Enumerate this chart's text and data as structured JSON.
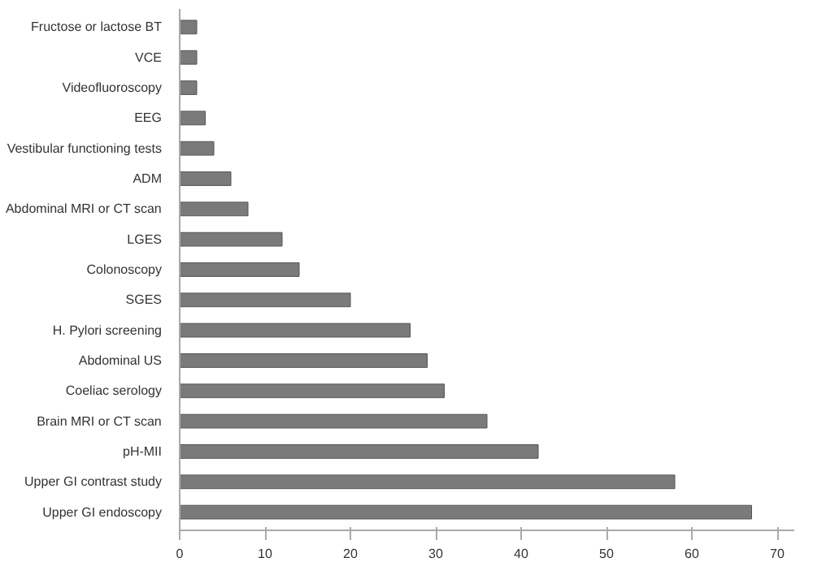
{
  "chart_data": {
    "type": "bar",
    "orientation": "horizontal",
    "categories": [
      "Fructose or lactose BT",
      "VCE",
      "Videofluoroscopy",
      "EEG",
      "Vestibular functioning tests",
      "ADM",
      "Abdominal MRI or CT scan",
      "LGES",
      "Colonoscopy",
      "SGES",
      "H. Pylori screening",
      "Abdominal US",
      "Coeliac serology",
      "Brain MRI or CT scan",
      "pH-MII",
      "Upper GI contrast study",
      "Upper GI endoscopy"
    ],
    "values": [
      2,
      2,
      2,
      3,
      4,
      6,
      8,
      12,
      14,
      20,
      27,
      29,
      31,
      36,
      42,
      58,
      67
    ],
    "color": "#7a7a7a",
    "xlim": [
      0,
      72
    ],
    "xticks": [
      0,
      10,
      20,
      30,
      40,
      50,
      60,
      70
    ],
    "grid": false
  }
}
